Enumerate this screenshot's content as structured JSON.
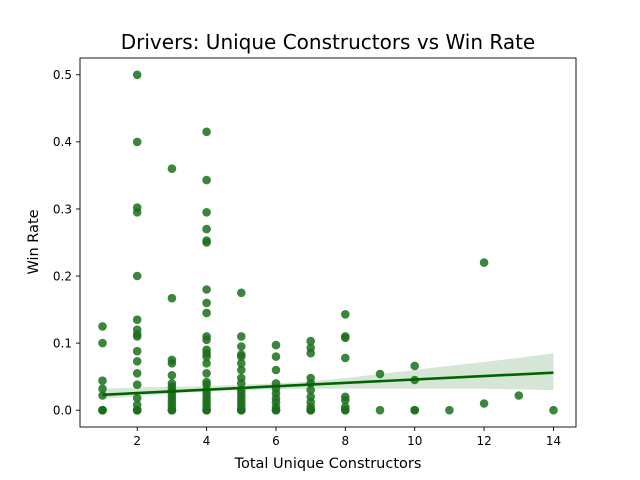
{
  "chart_data": {
    "type": "scatter",
    "title": "Drivers: Unique Constructors vs Win Rate",
    "xlabel": "Total Unique Constructors",
    "ylabel": "Win Rate",
    "xlim": [
      0.35,
      14.65
    ],
    "ylim": [
      -0.025,
      0.525
    ],
    "xticks": [
      2,
      4,
      6,
      8,
      10,
      12,
      14
    ],
    "yticks": [
      0.0,
      0.1,
      0.2,
      0.3,
      0.4,
      0.5
    ],
    "xtick_labels": [
      "2",
      "4",
      "6",
      "8",
      "10",
      "12",
      "14"
    ],
    "ytick_labels": [
      "0.0",
      "0.1",
      "0.2",
      "0.3",
      "0.4",
      "0.5"
    ],
    "grid": false,
    "colors": {
      "points": "#1b6e1b",
      "line": "#006400",
      "band": "#d6e6d6"
    },
    "points": [
      [
        1,
        0
      ],
      [
        1,
        0
      ],
      [
        1,
        0
      ],
      [
        1,
        0.022
      ],
      [
        1,
        0.032
      ],
      [
        1,
        0.044
      ],
      [
        1,
        0.1
      ],
      [
        1,
        0.125
      ],
      [
        2,
        0
      ],
      [
        2,
        0
      ],
      [
        2,
        0
      ],
      [
        2,
        0.008
      ],
      [
        2,
        0.018
      ],
      [
        2,
        0.038
      ],
      [
        2,
        0.055
      ],
      [
        2,
        0.073
      ],
      [
        2,
        0.088
      ],
      [
        2,
        0.11
      ],
      [
        2,
        0.113
      ],
      [
        2,
        0.12
      ],
      [
        2,
        0.135
      ],
      [
        2,
        0.2
      ],
      [
        2,
        0.295
      ],
      [
        2,
        0.302
      ],
      [
        2,
        0.4
      ],
      [
        2,
        0.5
      ],
      [
        3,
        0
      ],
      [
        3,
        0
      ],
      [
        3,
        0
      ],
      [
        3,
        0.005
      ],
      [
        3,
        0.01
      ],
      [
        3,
        0.015
      ],
      [
        3,
        0.02
      ],
      [
        3,
        0.025
      ],
      [
        3,
        0.03
      ],
      [
        3,
        0.035
      ],
      [
        3,
        0.04
      ],
      [
        3,
        0.052
      ],
      [
        3,
        0.07
      ],
      [
        3,
        0.075
      ],
      [
        3,
        0.167
      ],
      [
        3,
        0.36
      ],
      [
        4,
        0
      ],
      [
        4,
        0
      ],
      [
        4,
        0
      ],
      [
        4,
        0.005
      ],
      [
        4,
        0.01
      ],
      [
        4,
        0.015
      ],
      [
        4,
        0.02
      ],
      [
        4,
        0.025
      ],
      [
        4,
        0.03
      ],
      [
        4,
        0.038
      ],
      [
        4,
        0.042
      ],
      [
        4,
        0.055
      ],
      [
        4,
        0.07
      ],
      [
        4,
        0.08
      ],
      [
        4,
        0.085
      ],
      [
        4,
        0.09
      ],
      [
        4,
        0.105
      ],
      [
        4,
        0.11
      ],
      [
        4,
        0.145
      ],
      [
        4,
        0.16
      ],
      [
        4,
        0.18
      ],
      [
        4,
        0.25
      ],
      [
        4,
        0.253
      ],
      [
        4,
        0.27
      ],
      [
        4,
        0.295
      ],
      [
        4,
        0.343
      ],
      [
        4,
        0.415
      ],
      [
        5,
        0
      ],
      [
        5,
        0
      ],
      [
        5,
        0
      ],
      [
        5,
        0.005
      ],
      [
        5,
        0.01
      ],
      [
        5,
        0.015
      ],
      [
        5,
        0.02
      ],
      [
        5,
        0.025
      ],
      [
        5,
        0.03
      ],
      [
        5,
        0.04
      ],
      [
        5,
        0.048
      ],
      [
        5,
        0.06
      ],
      [
        5,
        0.07
      ],
      [
        5,
        0.08
      ],
      [
        5,
        0.083
      ],
      [
        5,
        0.095
      ],
      [
        5,
        0.11
      ],
      [
        5,
        0.175
      ],
      [
        6,
        0
      ],
      [
        6,
        0
      ],
      [
        6,
        0
      ],
      [
        6,
        0.005
      ],
      [
        6,
        0.012
      ],
      [
        6,
        0.018
      ],
      [
        6,
        0.025
      ],
      [
        6,
        0.032
      ],
      [
        6,
        0.04
      ],
      [
        6,
        0.06
      ],
      [
        6,
        0.08
      ],
      [
        6,
        0.097
      ],
      [
        7,
        0
      ],
      [
        7,
        0
      ],
      [
        7,
        0
      ],
      [
        7,
        0.005
      ],
      [
        7,
        0.012
      ],
      [
        7,
        0.02
      ],
      [
        7,
        0.03
      ],
      [
        7,
        0.04
      ],
      [
        7,
        0.048
      ],
      [
        7,
        0.085
      ],
      [
        7,
        0.093
      ],
      [
        7,
        0.103
      ],
      [
        8,
        0
      ],
      [
        8,
        0
      ],
      [
        8,
        0.005
      ],
      [
        8,
        0.015
      ],
      [
        8,
        0.02
      ],
      [
        8,
        0.078
      ],
      [
        8,
        0.108
      ],
      [
        8,
        0.11
      ],
      [
        8,
        0.143
      ],
      [
        9,
        0
      ],
      [
        9,
        0.054
      ],
      [
        10,
        0
      ],
      [
        10,
        0
      ],
      [
        10,
        0.045
      ],
      [
        10,
        0.066
      ],
      [
        11,
        0
      ],
      [
        12,
        0.01
      ],
      [
        12,
        0.22
      ],
      [
        13,
        0.022
      ],
      [
        14,
        0
      ]
    ],
    "regression": {
      "x": [
        1,
        14
      ],
      "y": [
        0.023,
        0.056
      ]
    },
    "confidence_band": {
      "x": [
        1,
        2,
        3,
        4,
        5,
        6,
        7,
        8,
        9,
        10,
        11,
        12,
        13,
        14
      ],
      "lower": [
        0.017,
        0.021,
        0.025,
        0.028,
        0.03,
        0.031,
        0.032,
        0.032,
        0.032,
        0.032,
        0.032,
        0.032,
        0.031,
        0.03
      ],
      "upper": [
        0.032,
        0.034,
        0.035,
        0.036,
        0.038,
        0.04,
        0.043,
        0.048,
        0.054,
        0.06,
        0.066,
        0.072,
        0.078,
        0.085
      ]
    }
  }
}
